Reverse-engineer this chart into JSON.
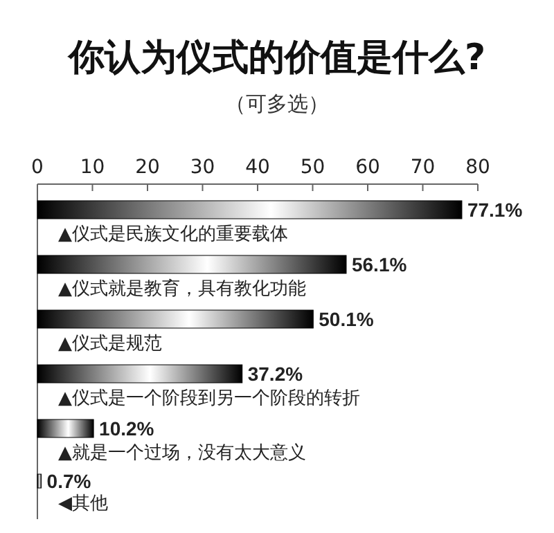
{
  "chart_data": {
    "type": "bar",
    "orientation": "horizontal",
    "title": "你认为仪式的价值是什么?",
    "subtitle": "（可多选）",
    "categories": [
      "▲仪式是民族文化的重要载体",
      "▲仪式就是教育，具有教化功能",
      "▲仪式是规范",
      "▲仪式是一个阶段到另一个阶段的转折",
      "▲就是一个过场，没有太大意义",
      "◀其他"
    ],
    "values": [
      77.1,
      56.1,
      50.1,
      37.2,
      10.2,
      0.7
    ],
    "value_labels": [
      "77.1%",
      "56.1%",
      "50.1%",
      "37.2%",
      "10.2%",
      "0.7%"
    ],
    "color": "#000000",
    "xlim": [
      0,
      80
    ],
    "xticks": [
      0,
      10,
      20,
      30,
      40,
      50,
      60,
      70,
      80
    ]
  }
}
